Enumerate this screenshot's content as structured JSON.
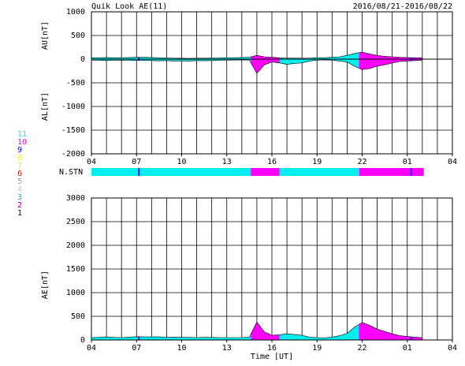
{
  "title": "Quik Look AE(11)",
  "date_range": "2016/08/21-2016/08/22",
  "station_legend": [
    {
      "label": "11",
      "color": "#00eeee"
    },
    {
      "label": "10",
      "color": "#ff00ff"
    },
    {
      "label": "9",
      "color": "#0000ff"
    },
    {
      "label": "8",
      "color": "#ffff00"
    },
    {
      "label": "7",
      "color": "#e0e070"
    },
    {
      "label": "6",
      "color": "#ff0000"
    },
    {
      "label": "5",
      "color": "#a0a0a0"
    },
    {
      "label": "4",
      "color": "#c8c8c8"
    },
    {
      "label": "3",
      "color": "#40a0a0"
    },
    {
      "label": "2",
      "color": "#a000a0"
    },
    {
      "label": "1",
      "color": "#0000a0"
    }
  ],
  "n_stn": {
    "label": "N.STN",
    "segments": [
      {
        "start": 4,
        "end": 7.1,
        "count": 11
      },
      {
        "start": 7.1,
        "end": 7.2,
        "count": 9
      },
      {
        "start": 7.2,
        "end": 14.6,
        "count": 11
      },
      {
        "start": 14.6,
        "end": 16.5,
        "count": 10
      },
      {
        "start": 16.5,
        "end": 21.8,
        "count": 11
      },
      {
        "start": 21.8,
        "end": 25.2,
        "count": 10
      },
      {
        "start": 25.2,
        "end": 25.3,
        "count": 9
      },
      {
        "start": 25.3,
        "end": 26.1,
        "count": 10
      }
    ]
  },
  "chart_data": [
    {
      "type": "area",
      "ylabels": [
        "AU[nT]",
        "AL[nT]"
      ],
      "xlim": [
        4,
        28
      ],
      "xticks": [
        {
          "value": 4,
          "label": "04"
        },
        {
          "value": 7,
          "label": "07"
        },
        10,
        13,
        16,
        19,
        22,
        {
          "value": 25,
          "label": "01"
        },
        {
          "value": 28,
          "label": "04"
        }
      ],
      "ylim": [
        -2000,
        1000
      ],
      "yticks": [
        1000,
        500,
        0,
        -500,
        -1000,
        -1500,
        -2000
      ],
      "grid": true,
      "x": [
        4,
        4.5,
        5,
        5.5,
        6,
        6.5,
        7,
        7.5,
        8,
        8.5,
        9,
        9.5,
        10,
        10.5,
        11,
        11.5,
        12,
        12.5,
        13,
        13.5,
        14,
        14.5,
        15,
        15.5,
        16,
        16.5,
        17,
        17.5,
        18,
        18.5,
        19,
        19.5,
        20,
        20.5,
        21,
        21.5,
        22,
        22.5,
        23,
        23.5,
        24,
        24.5,
        25,
        25.5,
        26
      ],
      "series": [
        {
          "name": "AU",
          "values": [
            30,
            30,
            35,
            30,
            30,
            35,
            40,
            40,
            35,
            30,
            25,
            20,
            20,
            15,
            20,
            20,
            25,
            25,
            30,
            30,
            35,
            40,
            80,
            50,
            40,
            30,
            20,
            25,
            20,
            20,
            30,
            30,
            40,
            50,
            80,
            120,
            150,
            110,
            80,
            60,
            50,
            40,
            35,
            30,
            30
          ]
        },
        {
          "name": "AL",
          "values": [
            -20,
            -25,
            -30,
            -25,
            -20,
            -25,
            -30,
            -25,
            -30,
            -35,
            -30,
            -40,
            -35,
            -40,
            -30,
            -35,
            -30,
            -25,
            -20,
            -20,
            -15,
            -20,
            -300,
            -120,
            -60,
            -80,
            -110,
            -90,
            -80,
            -40,
            -20,
            -15,
            -20,
            -40,
            -60,
            -150,
            -220,
            -200,
            -150,
            -120,
            -80,
            -50,
            -40,
            -30,
            -20
          ]
        }
      ]
    },
    {
      "type": "area",
      "ylabel": "AE[nT]",
      "xlabel": "Time [UT]",
      "xlim": [
        4,
        28
      ],
      "xticks": [
        {
          "value": 4,
          "label": "04"
        },
        {
          "value": 7,
          "label": "07"
        },
        10,
        13,
        16,
        19,
        22,
        {
          "value": 25,
          "label": "01"
        },
        {
          "value": 28,
          "label": "04"
        }
      ],
      "ylim": [
        0,
        3000
      ],
      "yticks": [
        3000,
        2500,
        2000,
        1500,
        1000,
        500,
        0
      ],
      "grid": true,
      "x": [
        4,
        4.5,
        5,
        5.5,
        6,
        6.5,
        7,
        7.5,
        8,
        8.5,
        9,
        9.5,
        10,
        10.5,
        11,
        11.5,
        12,
        12.5,
        13,
        13.5,
        14,
        14.5,
        15,
        15.5,
        16,
        16.5,
        17,
        17.5,
        18,
        18.5,
        19,
        19.5,
        20,
        20.5,
        21,
        21.5,
        22,
        22.5,
        23,
        23.5,
        24,
        24.5,
        25,
        25.5,
        26
      ],
      "series": [
        {
          "name": "AE",
          "values": [
            50,
            55,
            65,
            55,
            50,
            60,
            70,
            65,
            65,
            65,
            55,
            60,
            55,
            55,
            50,
            55,
            55,
            50,
            50,
            50,
            50,
            60,
            380,
            170,
            100,
            110,
            130,
            115,
            100,
            60,
            50,
            45,
            60,
            90,
            140,
            270,
            370,
            310,
            230,
            180,
            130,
            90,
            75,
            60,
            50
          ]
        }
      ]
    }
  ]
}
